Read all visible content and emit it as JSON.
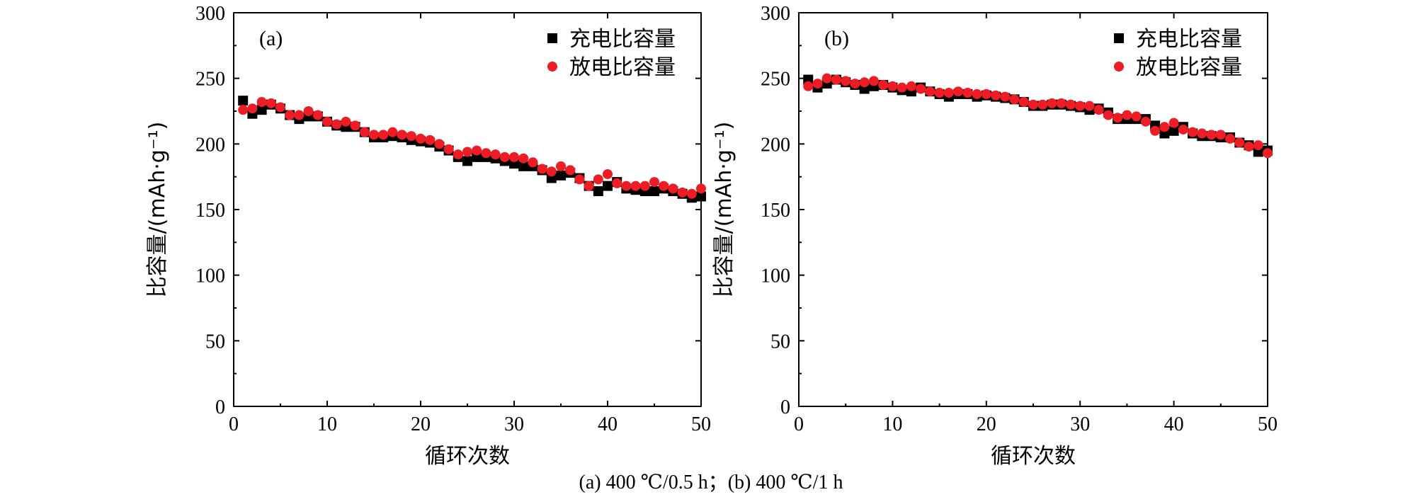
{
  "chart_data": [
    {
      "type": "scatter",
      "panel_label": "(a)",
      "xlabel": "循环次数",
      "ylabel": "比容量/(mAh·g⁻¹)",
      "xlim": [
        0,
        50
      ],
      "ylim": [
        0,
        300
      ],
      "xticks": [
        0,
        10,
        20,
        30,
        40,
        50
      ],
      "yticks": [
        0,
        50,
        100,
        150,
        200,
        250,
        300
      ],
      "legend_position": "top-right",
      "series": [
        {
          "name": "充电比容量",
          "marker": "square",
          "color": "#000000",
          "x": [
            1,
            2,
            3,
            4,
            5,
            6,
            7,
            8,
            9,
            10,
            11,
            12,
            13,
            14,
            15,
            16,
            17,
            18,
            19,
            20,
            21,
            22,
            23,
            24,
            25,
            26,
            27,
            28,
            29,
            30,
            31,
            32,
            33,
            34,
            35,
            36,
            37,
            38,
            39,
            40,
            41,
            42,
            43,
            44,
            45,
            46,
            47,
            48,
            49,
            50
          ],
          "values": [
            233,
            223,
            226,
            230,
            227,
            222,
            219,
            221,
            221,
            217,
            214,
            213,
            213,
            209,
            205,
            205,
            206,
            205,
            203,
            202,
            201,
            198,
            195,
            190,
            187,
            190,
            190,
            189,
            187,
            185,
            183,
            183,
            180,
            174,
            176,
            178,
            174,
            168,
            164,
            168,
            171,
            166,
            165,
            164,
            164,
            166,
            164,
            162,
            159,
            160
          ]
        },
        {
          "name": "放电比容量",
          "marker": "circle",
          "color": "#ee1c25",
          "x": [
            1,
            2,
            3,
            4,
            5,
            6,
            7,
            8,
            9,
            10,
            11,
            12,
            13,
            14,
            15,
            16,
            17,
            18,
            19,
            20,
            21,
            22,
            23,
            24,
            25,
            26,
            27,
            28,
            29,
            30,
            31,
            32,
            33,
            34,
            35,
            36,
            37,
            38,
            39,
            40,
            41,
            42,
            43,
            44,
            45,
            46,
            47,
            48,
            49,
            50
          ],
          "values": [
            226,
            227,
            232,
            231,
            228,
            222,
            222,
            225,
            222,
            217,
            215,
            217,
            214,
            209,
            207,
            207,
            209,
            207,
            206,
            204,
            203,
            200,
            196,
            192,
            194,
            195,
            193,
            192,
            190,
            190,
            189,
            186,
            181,
            179,
            183,
            180,
            173,
            168,
            173,
            177,
            170,
            168,
            168,
            168,
            171,
            168,
            166,
            163,
            162,
            166
          ]
        }
      ]
    },
    {
      "type": "scatter",
      "panel_label": "(b)",
      "xlabel": "循环次数",
      "ylabel": "比容量/(mAh·g⁻¹)",
      "xlim": [
        0,
        50
      ],
      "ylim": [
        0,
        300
      ],
      "xticks": [
        0,
        10,
        20,
        30,
        40,
        50
      ],
      "yticks": [
        0,
        50,
        100,
        150,
        200,
        250,
        300
      ],
      "legend_position": "top-right",
      "series": [
        {
          "name": "充电比容量",
          "marker": "square",
          "color": "#000000",
          "x": [
            1,
            2,
            3,
            4,
            5,
            6,
            7,
            8,
            9,
            10,
            11,
            12,
            13,
            14,
            15,
            16,
            17,
            18,
            19,
            20,
            21,
            22,
            23,
            24,
            25,
            26,
            27,
            28,
            29,
            30,
            31,
            32,
            33,
            34,
            35,
            36,
            37,
            38,
            39,
            40,
            41,
            42,
            43,
            44,
            45,
            46,
            47,
            48,
            49,
            50
          ],
          "values": [
            249,
            243,
            246,
            249,
            247,
            245,
            242,
            244,
            245,
            243,
            241,
            240,
            243,
            240,
            238,
            236,
            238,
            238,
            236,
            237,
            236,
            235,
            234,
            232,
            229,
            229,
            230,
            230,
            229,
            228,
            226,
            227,
            224,
            219,
            219,
            219,
            219,
            214,
            208,
            210,
            213,
            208,
            206,
            206,
            205,
            205,
            201,
            199,
            194,
            195
          ]
        },
        {
          "name": "放电比容量",
          "marker": "circle",
          "color": "#ee1c25",
          "x": [
            1,
            2,
            3,
            4,
            5,
            6,
            7,
            8,
            9,
            10,
            11,
            12,
            13,
            14,
            15,
            16,
            17,
            18,
            19,
            20,
            21,
            22,
            23,
            24,
            25,
            26,
            27,
            28,
            29,
            30,
            31,
            32,
            33,
            34,
            35,
            36,
            37,
            38,
            39,
            40,
            41,
            42,
            43,
            44,
            45,
            46,
            47,
            48,
            49,
            50
          ],
          "values": [
            244,
            246,
            250,
            249,
            248,
            246,
            247,
            248,
            245,
            244,
            243,
            244,
            242,
            240,
            239,
            239,
            240,
            239,
            238,
            238,
            237,
            236,
            234,
            232,
            230,
            230,
            231,
            231,
            230,
            229,
            229,
            226,
            222,
            220,
            222,
            221,
            217,
            210,
            213,
            216,
            211,
            209,
            208,
            207,
            207,
            204,
            201,
            198,
            199,
            193
          ]
        }
      ]
    }
  ],
  "caption": "(a) 400 ℃/0.5 h；(b) 400 ℃/1 h"
}
